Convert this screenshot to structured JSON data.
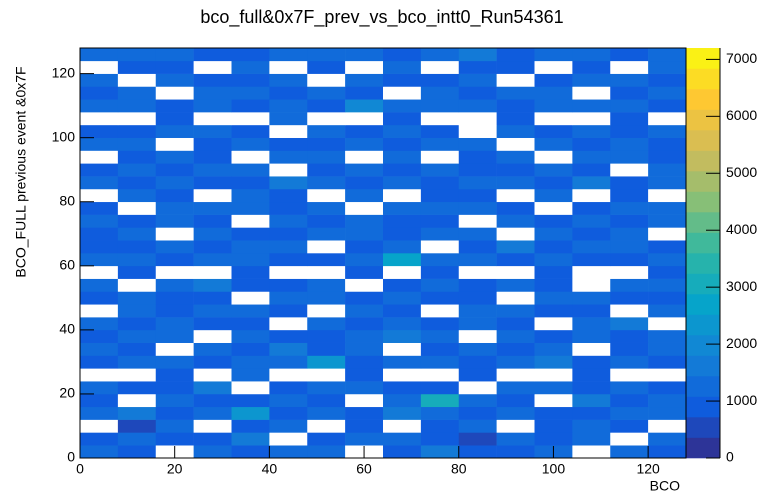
{
  "chart_data": {
    "type": "heatmap",
    "title": "bco_full&0x7F_prev_vs_bco_intt0_Run54361",
    "x_label": "BCO",
    "y_label": "BCO_FULL previous event &0x7F",
    "xlim": [
      0,
      128
    ],
    "ylim": [
      0,
      128
    ],
    "zlim": [
      0,
      7200
    ],
    "xticks": [
      0,
      20,
      40,
      60,
      80,
      100,
      120
    ],
    "yticks": [
      0,
      20,
      40,
      60,
      80,
      100,
      120
    ],
    "zticks": [
      0,
      1000,
      2000,
      3000,
      4000,
      5000,
      6000,
      7000
    ],
    "palette": [
      "#352a87",
      "#0f5cdd",
      "#1481d6",
      "#06a4ca",
      "#2eb7a4",
      "#87bf77",
      "#d1bb59",
      "#fec832",
      "#f9fb0e"
    ],
    "palette_bands": 20,
    "x_bins": [
      0,
      8,
      16,
      24,
      32,
      40,
      48,
      56,
      64,
      72,
      80,
      88,
      96,
      104,
      112,
      120,
      128
    ],
    "y_bins": [
      0,
      4,
      8,
      12,
      16,
      20,
      24,
      28,
      32,
      36,
      40,
      44,
      48,
      52,
      56,
      60,
      64,
      68,
      72,
      76,
      80,
      84,
      88,
      92,
      96,
      100,
      104,
      108,
      112,
      116,
      120,
      124,
      128
    ],
    "values": [
      [
        1200,
        900,
        0,
        1400,
        800,
        1100,
        1300,
        0,
        900,
        1500,
        1000,
        800,
        1200,
        0,
        1100,
        900
      ],
      [
        800,
        1300,
        1000,
        900,
        1600,
        0,
        800,
        1200,
        1400,
        900,
        700,
        1300,
        1000,
        1100,
        0,
        1200
      ],
      [
        0,
        700,
        1100,
        0,
        900,
        1200,
        0,
        1000,
        0,
        800,
        1100,
        0,
        900,
        1200,
        800,
        0
      ],
      [
        1100,
        1500,
        900,
        1200,
        2400,
        800,
        1300,
        1000,
        1600,
        1200,
        900,
        1400,
        800,
        1000,
        1300,
        1100
      ],
      [
        900,
        0,
        1300,
        800,
        1000,
        1400,
        900,
        0,
        1100,
        3200,
        1200,
        900,
        0,
        1500,
        900,
        1200
      ],
      [
        1300,
        1000,
        800,
        1500,
        0,
        900,
        1200,
        1400,
        800,
        1000,
        0,
        1300,
        1100,
        900,
        1400,
        800
      ],
      [
        0,
        0,
        900,
        0,
        1100,
        0,
        0,
        900,
        0,
        0,
        1000,
        0,
        0,
        800,
        0,
        0
      ],
      [
        1000,
        1400,
        1200,
        900,
        1300,
        1100,
        2200,
        800,
        1200,
        1400,
        900,
        1100,
        1500,
        1000,
        1200,
        900
      ],
      [
        1400,
        800,
        0,
        1200,
        900,
        1500,
        1000,
        1300,
        0,
        900,
        1300,
        800,
        1200,
        0,
        1000,
        1400
      ],
      [
        800,
        1200,
        1100,
        0,
        1400,
        800,
        900,
        1100,
        1500,
        1200,
        0,
        1400,
        900,
        1300,
        800,
        1100
      ],
      [
        1200,
        900,
        1400,
        1000,
        800,
        0,
        1300,
        900,
        1100,
        800,
        1200,
        1000,
        0,
        1100,
        1500,
        0
      ],
      [
        0,
        1100,
        800,
        1300,
        1200,
        1000,
        0,
        1400,
        900,
        0,
        1100,
        1300,
        1000,
        800,
        0,
        1200
      ],
      [
        900,
        1300,
        1000,
        800,
        0,
        1200,
        1100,
        800,
        1300,
        1000,
        900,
        0,
        1400,
        1200,
        1000,
        800
      ],
      [
        1100,
        0,
        1200,
        1500,
        1000,
        900,
        1400,
        0,
        1000,
        1300,
        800,
        1200,
        900,
        0,
        1300,
        1100
      ],
      [
        0,
        800,
        0,
        0,
        900,
        0,
        0,
        1000,
        0,
        800,
        0,
        0,
        900,
        0,
        0,
        1000
      ],
      [
        1300,
        1200,
        900,
        1100,
        1400,
        800,
        1000,
        1200,
        2600,
        1100,
        1400,
        900,
        1200,
        1000,
        900,
        1300
      ],
      [
        1000,
        900,
        1300,
        800,
        1200,
        1400,
        0,
        900,
        1300,
        0,
        1000,
        1500,
        800,
        1300,
        1200,
        900
      ],
      [
        800,
        1400,
        0,
        1200,
        900,
        1000,
        1300,
        1100,
        800,
        1400,
        1200,
        0,
        1100,
        900,
        1400,
        0
      ],
      [
        1200,
        1000,
        1100,
        900,
        0,
        1300,
        800,
        1400,
        1000,
        900,
        0,
        1300,
        1000,
        1200,
        800,
        1100
      ],
      [
        900,
        0,
        1400,
        1300,
        1100,
        800,
        1200,
        0,
        1400,
        1100,
        1300,
        800,
        0,
        1000,
        1300,
        1200
      ],
      [
        0,
        1200,
        800,
        0,
        1300,
        900,
        0,
        1100,
        0,
        1000,
        800,
        0,
        1300,
        0,
        900,
        0
      ],
      [
        1400,
        900,
        1200,
        1000,
        800,
        1500,
        1100,
        900,
        1200,
        800,
        1400,
        1100,
        900,
        1500,
        1000,
        1300
      ],
      [
        1000,
        1300,
        900,
        1400,
        1200,
        0,
        900,
        1300,
        800,
        1200,
        1000,
        900,
        1400,
        800,
        0,
        1100
      ],
      [
        0,
        800,
        1100,
        900,
        0,
        1200,
        1400,
        0,
        1100,
        0,
        900,
        1300,
        0,
        1100,
        1200,
        900
      ],
      [
        1100,
        1200,
        0,
        800,
        1400,
        1000,
        800,
        1200,
        900,
        1300,
        1100,
        0,
        1200,
        900,
        1400,
        1000
      ],
      [
        800,
        1000,
        1300,
        1200,
        900,
        0,
        1300,
        1000,
        1400,
        900,
        0,
        1200,
        800,
        1300,
        900,
        1200
      ],
      [
        0,
        0,
        900,
        0,
        0,
        1100,
        0,
        0,
        900,
        0,
        0,
        1000,
        0,
        0,
        800,
        0
      ],
      [
        1300,
        1100,
        1000,
        1400,
        900,
        1200,
        1000,
        2100,
        1200,
        1100,
        1300,
        900,
        1100,
        1400,
        1200,
        1000
      ],
      [
        900,
        1400,
        0,
        1100,
        1300,
        800,
        1200,
        900,
        0,
        1400,
        800,
        1200,
        1300,
        0,
        1000,
        1400
      ],
      [
        1200,
        0,
        1100,
        900,
        1000,
        1400,
        0,
        1300,
        1000,
        800,
        1200,
        0,
        900,
        1200,
        1300,
        800
      ],
      [
        0,
        1000,
        800,
        0,
        1200,
        0,
        900,
        0,
        1100,
        0,
        1000,
        800,
        0,
        900,
        0,
        1100
      ],
      [
        1100,
        1300,
        1200,
        1000,
        800,
        1300,
        1100,
        1400,
        900,
        1200,
        1500,
        1000,
        1300,
        1100,
        900,
        1200
      ]
    ]
  }
}
